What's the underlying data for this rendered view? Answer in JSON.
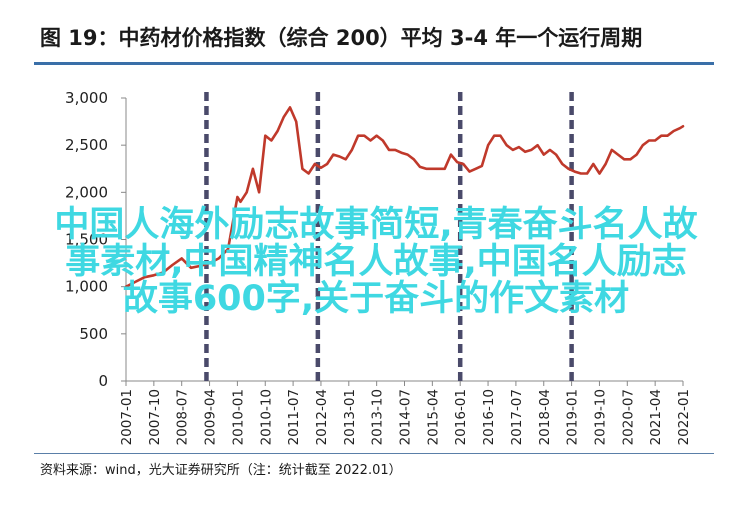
{
  "header": {
    "title": "图 19：中药材价格指数（综合 200）平均 3-4 年一个运行周期"
  },
  "footer": {
    "source": "资料来源：wind，光大证券研究所（注：统计截至 2022.01）"
  },
  "overlay": {
    "line1": "中国人海外励志故事简短,青春奋斗名人故",
    "line2": "事素材,中国精神名人故事,中国名人励志",
    "line3": "故事600字,关于奋斗的作文素材"
  },
  "chart_data": {
    "type": "line",
    "title": "",
    "xlabel": "",
    "ylabel": "",
    "ylim": [
      0,
      3000
    ],
    "yticks": [
      "3,000",
      "2,500",
      "2,000",
      "1,500",
      "1,000",
      "500",
      "0"
    ],
    "ytick_values": [
      3000,
      2500,
      2000,
      1500,
      1000,
      500,
      0
    ],
    "xticks": [
      "2007-01",
      "2007-10",
      "2008-07",
      "2009-04",
      "2010-01",
      "2010-10",
      "2011-07",
      "2012-04",
      "2013-01",
      "2013-10",
      "2014-07",
      "2015-04",
      "2016-01",
      "2016-10",
      "2017-07",
      "2018-04",
      "2019-01",
      "2019-10",
      "2020-07",
      "2021-04",
      "2022-01"
    ],
    "line_color": "#c0392b",
    "cycle_marker_color": "#4a4a6a",
    "cycle_markers": [
      "2009-03",
      "2012-03",
      "2016-01",
      "2019-01"
    ],
    "grid": false,
    "series": [
      {
        "x": [
          "2007-01",
          "2007-04",
          "2007-07",
          "2007-10",
          "2008-01",
          "2008-04",
          "2008-07",
          "2008-10",
          "2009-01",
          "2009-04",
          "2009-07",
          "2009-10",
          "2010-01",
          "2010-02",
          "2010-04",
          "2010-06",
          "2010-08",
          "2010-10",
          "2010-12",
          "2011-02",
          "2011-04",
          "2011-06",
          "2011-08",
          "2011-10",
          "2011-12",
          "2012-02",
          "2012-04",
          "2012-06",
          "2012-08",
          "2012-10",
          "2012-12",
          "2013-02",
          "2013-04",
          "2013-06",
          "2013-08",
          "2013-10",
          "2013-12",
          "2014-02",
          "2014-04",
          "2014-06",
          "2014-08",
          "2014-10",
          "2014-12",
          "2015-02",
          "2015-04",
          "2015-06",
          "2015-08",
          "2015-10",
          "2015-12",
          "2016-02",
          "2016-04",
          "2016-06",
          "2016-08",
          "2016-10",
          "2016-12",
          "2017-02",
          "2017-04",
          "2017-06",
          "2017-08",
          "2017-10",
          "2017-12",
          "2018-02",
          "2018-04",
          "2018-06",
          "2018-08",
          "2018-10",
          "2018-12",
          "2019-02",
          "2019-04",
          "2019-06",
          "2019-08",
          "2019-10",
          "2019-12",
          "2020-02",
          "2020-04",
          "2020-06",
          "2020-08",
          "2020-10",
          "2020-12",
          "2021-02",
          "2021-04",
          "2021-06",
          "2021-08",
          "2021-10",
          "2021-12",
          "2022-01"
        ],
        "values": [
          1000,
          1050,
          1100,
          1120,
          1150,
          1230,
          1300,
          1200,
          1220,
          1250,
          1300,
          1400,
          1950,
          1900,
          2000,
          2250,
          2000,
          2600,
          2550,
          2650,
          2800,
          2900,
          2750,
          2250,
          2200,
          2300,
          2260,
          2300,
          2400,
          2380,
          2350,
          2450,
          2600,
          2600,
          2550,
          2600,
          2550,
          2450,
          2450,
          2420,
          2400,
          2350,
          2270,
          2250,
          2250,
          2250,
          2250,
          2400,
          2320,
          2300,
          2220,
          2250,
          2280,
          2500,
          2600,
          2600,
          2500,
          2450,
          2480,
          2430,
          2450,
          2500,
          2400,
          2450,
          2400,
          2300,
          2250,
          2220,
          2200,
          2200,
          2300,
          2200,
          2300,
          2450,
          2400,
          2350,
          2350,
          2400,
          2500,
          2550,
          2550,
          2600,
          2600,
          2650,
          2680,
          2700
        ]
      }
    ]
  }
}
